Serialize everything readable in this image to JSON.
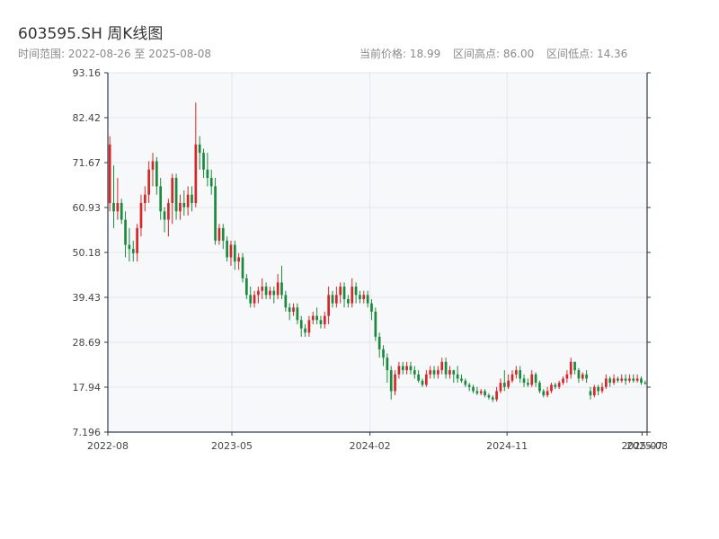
{
  "header": {
    "title": "603595.SH 周K线图",
    "range_label": "时间范围: 2022-08-26 至 2025-08-08",
    "current_price": "当前价格: 18.99",
    "high_label": "区间高点: 86.00",
    "low_label": "区间低点: 14.36"
  },
  "colors": {
    "up": "#d62728",
    "down": "#1a8a3c",
    "plot_bg": "#f7f8fa",
    "grid": "#e3e6ea",
    "axis": "#2f3b4c"
  },
  "chart_data": {
    "type": "candlestick",
    "title": "603595.SH 周K线图",
    "x_range": [
      "2022-08-26",
      "2025-08-08"
    ],
    "ylim": [
      7.196,
      93.16
    ],
    "y_ticks": [
      "93.16",
      "82.42",
      "71.67",
      "60.93",
      "50.18",
      "39.43",
      "28.69",
      "17.94",
      "7.196"
    ],
    "x_ticks": [
      "2022-08",
      "2023-05",
      "2024-02",
      "2024-11",
      "2025-07",
      "2025-08"
    ],
    "grid": true,
    "candles": [
      [
        62.0,
        76.0,
        60.0,
        78.0
      ],
      [
        62.0,
        60.0,
        56.0,
        71.0
      ],
      [
        60.0,
        62.0,
        58.0,
        68.0
      ],
      [
        62.0,
        58.0,
        57.0,
        63.0
      ],
      [
        58.0,
        52.0,
        49.0,
        60.0
      ],
      [
        52.0,
        51.0,
        48.0,
        56.0
      ],
      [
        51.0,
        50.0,
        48.0,
        53.0
      ],
      [
        50.0,
        56.0,
        48.0,
        57.0
      ],
      [
        56.0,
        62.0,
        54.0,
        64.0
      ],
      [
        62.0,
        64.0,
        60.0,
        66.0
      ],
      [
        64.0,
        70.0,
        62.0,
        72.0
      ],
      [
        70.0,
        72.0,
        66.0,
        74.0
      ],
      [
        72.0,
        66.0,
        64.0,
        73.0
      ],
      [
        66.0,
        60.0,
        58.0,
        68.0
      ],
      [
        60.0,
        58.0,
        55.0,
        61.0
      ],
      [
        58.0,
        62.0,
        54.0,
        63.0
      ],
      [
        62.0,
        68.0,
        57.0,
        69.0
      ],
      [
        68.0,
        60.0,
        58.0,
        69.0
      ],
      [
        60.0,
        62.0,
        58.0,
        64.0
      ],
      [
        62.0,
        61.0,
        59.0,
        65.0
      ],
      [
        61.0,
        64.0,
        59.0,
        66.0
      ],
      [
        64.0,
        62.0,
        60.0,
        66.0
      ],
      [
        62.0,
        76.0,
        61.0,
        86.0
      ],
      [
        76.0,
        74.0,
        70.0,
        78.0
      ],
      [
        74.0,
        70.0,
        68.0,
        75.0
      ],
      [
        70.0,
        68.0,
        66.0,
        74.0
      ],
      [
        68.0,
        66.0,
        64.0,
        70.0
      ],
      [
        66.0,
        53.0,
        52.0,
        68.0
      ],
      [
        53.0,
        56.0,
        52.0,
        57.0
      ],
      [
        56.0,
        53.0,
        51.0,
        57.0
      ],
      [
        53.0,
        49.0,
        48.0,
        54.0
      ],
      [
        49.0,
        52.0,
        47.0,
        53.0
      ],
      [
        52.0,
        48.0,
        46.0,
        53.0
      ],
      [
        48.0,
        49.0,
        46.0,
        50.0
      ],
      [
        49.0,
        44.0,
        43.0,
        50.0
      ],
      [
        44.0,
        40.0,
        39.0,
        45.0
      ],
      [
        40.0,
        38.0,
        37.0,
        42.0
      ],
      [
        38.0,
        40.0,
        37.0,
        41.0
      ],
      [
        40.0,
        41.0,
        38.0,
        42.0
      ],
      [
        41.0,
        42.0,
        39.0,
        44.0
      ],
      [
        42.0,
        40.0,
        39.0,
        43.0
      ],
      [
        40.0,
        41.0,
        39.0,
        42.0
      ],
      [
        41.0,
        40.0,
        38.0,
        42.0
      ],
      [
        40.0,
        43.0,
        39.0,
        45.0
      ],
      [
        43.0,
        40.0,
        39.0,
        47.0
      ],
      [
        40.0,
        37.0,
        36.0,
        41.0
      ],
      [
        37.0,
        36.0,
        34.0,
        38.0
      ],
      [
        36.0,
        37.0,
        35.0,
        38.0
      ],
      [
        37.0,
        34.0,
        33.0,
        38.0
      ],
      [
        34.0,
        32.0,
        30.0,
        35.0
      ],
      [
        32.0,
        31.0,
        30.0,
        33.0
      ],
      [
        31.0,
        34.0,
        30.0,
        35.0
      ],
      [
        34.0,
        35.0,
        33.0,
        36.0
      ],
      [
        35.0,
        34.0,
        33.0,
        37.0
      ],
      [
        34.0,
        33.0,
        32.0,
        35.0
      ],
      [
        33.0,
        35.0,
        32.0,
        36.0
      ],
      [
        35.0,
        40.0,
        33.0,
        42.0
      ],
      [
        40.0,
        38.0,
        37.0,
        41.0
      ],
      [
        38.0,
        40.0,
        37.0,
        42.0
      ],
      [
        40.0,
        42.0,
        38.0,
        43.0
      ],
      [
        42.0,
        39.0,
        37.0,
        43.0
      ],
      [
        39.0,
        38.0,
        37.0,
        40.0
      ],
      [
        38.0,
        42.0,
        37.0,
        44.0
      ],
      [
        42.0,
        40.0,
        38.0,
        43.0
      ],
      [
        40.0,
        39.0,
        38.0,
        41.0
      ],
      [
        39.0,
        40.0,
        38.0,
        41.0
      ],
      [
        40.0,
        38.0,
        37.0,
        41.0
      ],
      [
        38.0,
        36.0,
        34.0,
        39.0
      ],
      [
        36.0,
        30.0,
        29.0,
        37.0
      ],
      [
        30.0,
        27.0,
        25.0,
        31.0
      ],
      [
        27.0,
        25.0,
        23.0,
        28.0
      ],
      [
        25.0,
        22.0,
        19.0,
        26.0
      ],
      [
        22.0,
        17.0,
        15.0,
        23.0
      ],
      [
        17.0,
        21.0,
        16.0,
        22.0
      ],
      [
        21.0,
        23.0,
        20.0,
        24.0
      ],
      [
        23.0,
        22.0,
        21.0,
        24.0
      ],
      [
        22.0,
        23.0,
        21.0,
        24.0
      ],
      [
        23.0,
        22.0,
        21.0,
        24.0
      ],
      [
        22.0,
        21.0,
        20.0,
        23.0
      ],
      [
        21.0,
        19.5,
        19.0,
        22.0
      ],
      [
        19.5,
        18.5,
        18.0,
        20.0
      ],
      [
        18.5,
        21.0,
        18.0,
        22.0
      ],
      [
        21.0,
        22.0,
        20.0,
        23.0
      ],
      [
        22.0,
        21.0,
        20.0,
        23.0
      ],
      [
        21.0,
        22.0,
        20.0,
        23.0
      ],
      [
        22.0,
        24.0,
        21.0,
        25.0
      ],
      [
        24.0,
        21.0,
        20.0,
        25.0
      ],
      [
        21.0,
        22.0,
        20.0,
        23.0
      ],
      [
        22.0,
        21.0,
        19.0,
        22.0
      ],
      [
        21.0,
        20.0,
        19.0,
        23.0
      ],
      [
        20.0,
        19.5,
        19.0,
        21.0
      ],
      [
        19.5,
        18.5,
        18.0,
        20.0
      ],
      [
        18.5,
        18.0,
        17.0,
        19.0
      ],
      [
        18.0,
        17.0,
        16.5,
        18.5
      ],
      [
        17.0,
        16.5,
        16.0,
        18.0
      ],
      [
        16.5,
        17.0,
        16.0,
        17.5
      ],
      [
        17.0,
        16.0,
        15.5,
        17.5
      ],
      [
        16.0,
        15.5,
        15.0,
        16.5
      ],
      [
        15.5,
        15.0,
        14.4,
        16.0
      ],
      [
        15.0,
        17.0,
        14.5,
        18.0
      ],
      [
        17.0,
        19.0,
        16.5,
        20.0
      ],
      [
        19.0,
        18.0,
        17.0,
        22.0
      ],
      [
        18.0,
        19.5,
        17.5,
        21.0
      ],
      [
        19.5,
        21.0,
        19.0,
        22.0
      ],
      [
        21.0,
        22.0,
        20.0,
        23.0
      ],
      [
        22.0,
        20.0,
        19.0,
        23.0
      ],
      [
        20.0,
        19.0,
        18.0,
        21.0
      ],
      [
        19.0,
        18.5,
        18.0,
        20.0
      ],
      [
        18.5,
        21.0,
        18.0,
        22.0
      ],
      [
        21.0,
        19.0,
        18.0,
        21.5
      ],
      [
        19.0,
        17.0,
        16.5,
        19.5
      ],
      [
        17.0,
        16.0,
        15.5,
        17.5
      ],
      [
        16.0,
        17.0,
        15.5,
        18.0
      ],
      [
        17.0,
        18.5,
        16.5,
        19.0
      ],
      [
        18.5,
        18.0,
        17.5,
        19.0
      ],
      [
        18.0,
        19.0,
        17.5,
        19.5
      ],
      [
        19.0,
        20.0,
        18.5,
        20.5
      ],
      [
        20.0,
        21.0,
        19.0,
        22.0
      ],
      [
        21.0,
        24.0,
        20.0,
        25.0
      ],
      [
        24.0,
        22.0,
        21.0,
        24.0
      ],
      [
        22.0,
        20.0,
        19.0,
        22.5
      ],
      [
        20.0,
        21.0,
        19.5,
        21.5
      ],
      [
        21.0,
        20.0,
        19.0,
        22.0
      ],
      [
        17.0,
        16.0,
        15.0,
        18.0
      ],
      [
        16.0,
        18.0,
        15.5,
        18.5
      ],
      [
        18.0,
        17.0,
        16.0,
        18.5
      ],
      [
        17.0,
        18.0,
        16.5,
        19.0
      ],
      [
        18.0,
        20.0,
        17.5,
        21.0
      ],
      [
        20.0,
        19.0,
        18.0,
        20.5
      ],
      [
        19.0,
        20.0,
        18.5,
        21.0
      ],
      [
        20.0,
        19.5,
        19.0,
        20.5
      ],
      [
        19.5,
        20.0,
        19.0,
        21.0
      ],
      [
        20.0,
        19.5,
        18.5,
        21.0
      ],
      [
        19.5,
        20.0,
        19.0,
        21.0
      ],
      [
        20.0,
        19.5,
        19.0,
        21.0
      ],
      [
        19.5,
        20.0,
        19.0,
        21.0
      ],
      [
        20.0,
        19.0,
        18.5,
        20.5
      ],
      [
        19.0,
        18.99,
        18.5,
        19.5
      ]
    ]
  }
}
